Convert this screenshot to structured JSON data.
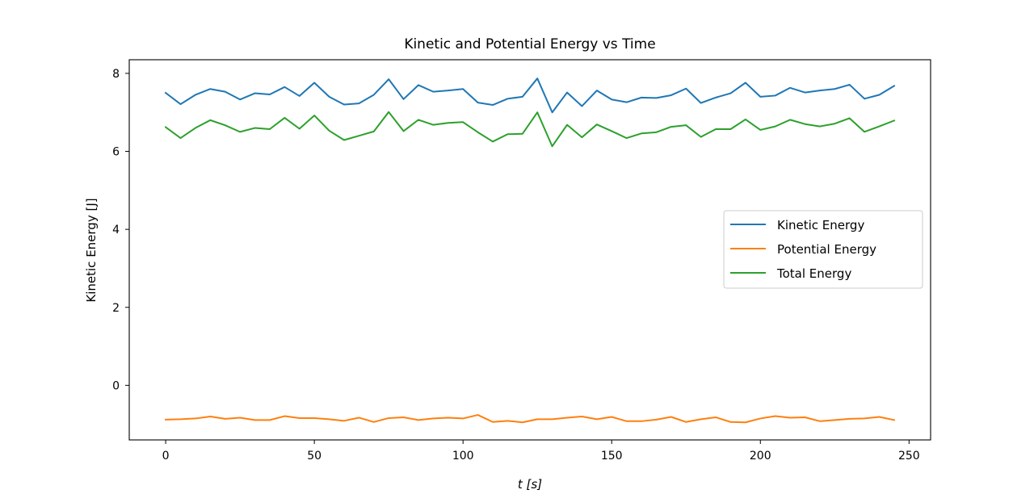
{
  "chart_data": {
    "type": "line",
    "title": "Kinetic and Potential Energy vs Time",
    "xlabel": "t [s]",
    "ylabel": "Kinetic Energy [J]",
    "xlim": [
      -12.25,
      257.25
    ],
    "ylim": [
      -1.4,
      8.35
    ],
    "xticks": [
      0,
      50,
      100,
      150,
      200,
      250
    ],
    "yticks": [
      0,
      2,
      4,
      6,
      8
    ],
    "grid": false,
    "legend_position": "center-right",
    "x": [
      0,
      5,
      10,
      15,
      20,
      25,
      30,
      35,
      40,
      45,
      50,
      55,
      60,
      65,
      70,
      75,
      80,
      85,
      90,
      95,
      100,
      105,
      110,
      115,
      120,
      125,
      130,
      135,
      140,
      145,
      150,
      155,
      160,
      165,
      170,
      175,
      180,
      185,
      190,
      195,
      200,
      205,
      210,
      215,
      220,
      225,
      230,
      235,
      240,
      245
    ],
    "series": [
      {
        "name": "Kinetic Energy",
        "color": "#1f77b4",
        "values": [
          7.5,
          7.21,
          7.45,
          7.6,
          7.53,
          7.33,
          7.49,
          7.46,
          7.65,
          7.42,
          7.76,
          7.4,
          7.2,
          7.23,
          7.45,
          7.85,
          7.34,
          7.7,
          7.53,
          7.56,
          7.6,
          7.25,
          7.19,
          7.35,
          7.4,
          7.87,
          7.0,
          7.51,
          7.16,
          7.56,
          7.33,
          7.26,
          7.38,
          7.37,
          7.44,
          7.61,
          7.24,
          7.38,
          7.49,
          7.76,
          7.4,
          7.43,
          7.63,
          7.51,
          7.56,
          7.6,
          7.71,
          7.35,
          7.45,
          7.68
        ]
      },
      {
        "name": "Potential Energy",
        "color": "#ff7f0e",
        "values": [
          -0.88,
          -0.87,
          -0.85,
          -0.8,
          -0.86,
          -0.83,
          -0.89,
          -0.89,
          -0.79,
          -0.84,
          -0.84,
          -0.87,
          -0.91,
          -0.83,
          -0.94,
          -0.84,
          -0.82,
          -0.89,
          -0.85,
          -0.83,
          -0.85,
          -0.76,
          -0.94,
          -0.91,
          -0.95,
          -0.87,
          -0.87,
          -0.83,
          -0.8,
          -0.87,
          -0.81,
          -0.92,
          -0.92,
          -0.88,
          -0.81,
          -0.94,
          -0.87,
          -0.82,
          -0.94,
          -0.95,
          -0.85,
          -0.79,
          -0.83,
          -0.82,
          -0.92,
          -0.89,
          -0.86,
          -0.85,
          -0.81,
          -0.89
        ]
      },
      {
        "name": "Total Energy",
        "color": "#2ca02c",
        "values": [
          6.62,
          6.34,
          6.6,
          6.8,
          6.67,
          6.5,
          6.6,
          6.57,
          6.86,
          6.58,
          6.92,
          6.53,
          6.29,
          6.4,
          6.51,
          7.01,
          6.52,
          6.81,
          6.68,
          6.73,
          6.75,
          6.49,
          6.25,
          6.44,
          6.45,
          7.0,
          6.13,
          6.68,
          6.36,
          6.69,
          6.52,
          6.34,
          6.46,
          6.49,
          6.63,
          6.67,
          6.37,
          6.57,
          6.57,
          6.82,
          6.55,
          6.64,
          6.81,
          6.7,
          6.64,
          6.71,
          6.85,
          6.5,
          6.64,
          6.79
        ]
      }
    ]
  }
}
